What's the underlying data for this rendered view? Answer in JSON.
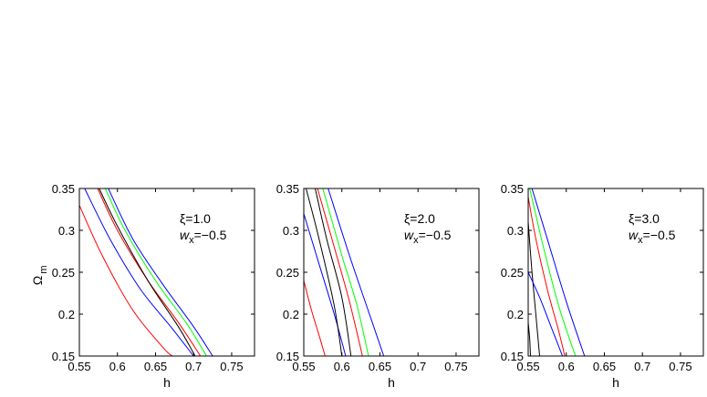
{
  "chart_data": [
    {
      "type": "line",
      "xlabel": "h",
      "ylabel": "Ω",
      "ylabel_sub": "m",
      "xlim": [
        0.55,
        0.78
      ],
      "ylim": [
        0.15,
        0.35
      ],
      "xticks": [
        "0.55",
        "0.6",
        "0.65",
        "0.7",
        "0.75"
      ],
      "yticks": [
        "0.15",
        "0.2",
        "0.25",
        "0.3",
        "0.35"
      ],
      "annotation_line1": "ξ=1.0",
      "annotation_w": "w",
      "annotation_w_sub": "x",
      "annotation_w_value": "=−0.5",
      "series": [
        {
          "color": "#ff0000",
          "points": [
            [
              0.55,
              0.33
            ],
            [
              0.58,
              0.27
            ],
            [
              0.62,
              0.205
            ],
            [
              0.66,
              0.16
            ],
            [
              0.672,
              0.15
            ]
          ]
        },
        {
          "color": "#0000ff",
          "points": [
            [
              0.557,
              0.35
            ],
            [
              0.59,
              0.29
            ],
            [
              0.63,
              0.23
            ],
            [
              0.67,
              0.185
            ],
            [
              0.7,
              0.15
            ]
          ]
        },
        {
          "color": "#ff0000",
          "points": [
            [
              0.574,
              0.35
            ],
            [
              0.6,
              0.3
            ],
            [
              0.64,
              0.24
            ],
            [
              0.68,
              0.19
            ],
            [
              0.709,
              0.15
            ]
          ]
        },
        {
          "color": "#000000",
          "points": [
            [
              0.576,
              0.35
            ],
            [
              0.6,
              0.305
            ],
            [
              0.64,
              0.24
            ],
            [
              0.68,
              0.185
            ],
            [
              0.702,
              0.15
            ]
          ]
        },
        {
          "color": "#00ff00",
          "points": [
            [
              0.584,
              0.35
            ],
            [
              0.61,
              0.3
            ],
            [
              0.65,
              0.24
            ],
            [
              0.69,
              0.19
            ],
            [
              0.717,
              0.15
            ]
          ]
        },
        {
          "color": "#0000ff",
          "points": [
            [
              0.588,
              0.35
            ],
            [
              0.62,
              0.29
            ],
            [
              0.66,
              0.235
            ],
            [
              0.7,
              0.185
            ],
            [
              0.725,
              0.15
            ]
          ]
        }
      ]
    },
    {
      "type": "line",
      "xlabel": "h",
      "xlim": [
        0.55,
        0.78
      ],
      "ylim": [
        0.15,
        0.35
      ],
      "xticks": [
        "0.55",
        "0.6",
        "0.65",
        "0.7",
        "0.75"
      ],
      "yticks": [
        "0.15",
        "0.2",
        "0.25",
        "0.3",
        "0.35"
      ],
      "annotation_line1": "ξ=2.0",
      "annotation_w": "w",
      "annotation_w_sub": "x",
      "annotation_w_value": "=−0.5",
      "series": [
        {
          "color": "#ff0000",
          "points": [
            [
              0.55,
              0.24
            ],
            [
              0.56,
              0.205
            ],
            [
              0.57,
              0.175
            ],
            [
              0.578,
              0.15
            ]
          ]
        },
        {
          "color": "#0000ff",
          "points": [
            [
              0.55,
              0.32
            ],
            [
              0.57,
              0.26
            ],
            [
              0.59,
              0.2
            ],
            [
              0.605,
              0.15
            ]
          ]
        },
        {
          "color": "#000000",
          "points": [
            [
              0.553,
              0.35
            ],
            [
              0.57,
              0.29
            ],
            [
              0.59,
              0.21
            ],
            [
              0.6,
              0.15
            ]
          ]
        },
        {
          "color": "#000000",
          "points": [
            [
              0.565,
              0.35
            ],
            [
              0.58,
              0.29
            ],
            [
              0.6,
              0.22
            ],
            [
              0.612,
              0.15
            ]
          ]
        },
        {
          "color": "#ff0000",
          "points": [
            [
              0.568,
              0.35
            ],
            [
              0.59,
              0.28
            ],
            [
              0.61,
              0.215
            ],
            [
              0.627,
              0.15
            ]
          ]
        },
        {
          "color": "#00ff00",
          "points": [
            [
              0.575,
              0.35
            ],
            [
              0.6,
              0.27
            ],
            [
              0.62,
              0.21
            ],
            [
              0.635,
              0.15
            ]
          ]
        },
        {
          "color": "#0000ff",
          "points": [
            [
              0.582,
              0.35
            ],
            [
              0.61,
              0.27
            ],
            [
              0.64,
              0.19
            ],
            [
              0.655,
              0.15
            ]
          ]
        }
      ]
    },
    {
      "type": "line",
      "xlabel": "h",
      "xlim": [
        0.55,
        0.78
      ],
      "ylim": [
        0.15,
        0.35
      ],
      "xticks": [
        "0.55",
        "0.6",
        "0.65",
        "0.7",
        "0.75"
      ],
      "yticks": [
        "0.15",
        "0.2",
        "0.25",
        "0.3",
        "0.35"
      ],
      "annotation_line1": "ξ=3.0",
      "annotation_w": "w",
      "annotation_w_sub": "x",
      "annotation_w_value": "=−0.5",
      "series": [
        {
          "color": "#000000",
          "points": [
            [
              0.55,
              0.19
            ],
            [
              0.552,
              0.17
            ],
            [
              0.553,
              0.15
            ]
          ]
        },
        {
          "color": "#000000",
          "points": [
            [
              0.55,
              0.31
            ],
            [
              0.555,
              0.25
            ],
            [
              0.56,
              0.2
            ],
            [
              0.565,
              0.15
            ]
          ]
        },
        {
          "color": "#0000ff",
          "points": [
            [
              0.55,
              0.25
            ],
            [
              0.565,
              0.22
            ],
            [
              0.58,
              0.185
            ],
            [
              0.595,
              0.15
            ]
          ]
        },
        {
          "color": "#ff0000",
          "points": [
            [
              0.55,
              0.34
            ],
            [
              0.56,
              0.29
            ],
            [
              0.575,
              0.23
            ],
            [
              0.59,
              0.18
            ],
            [
              0.598,
              0.15
            ]
          ]
        },
        {
          "color": "#00ff00",
          "points": [
            [
              0.552,
              0.35
            ],
            [
              0.57,
              0.28
            ],
            [
              0.59,
              0.21
            ],
            [
              0.612,
              0.15
            ]
          ]
        },
        {
          "color": "#0000ff",
          "points": [
            [
              0.555,
              0.35
            ],
            [
              0.575,
              0.29
            ],
            [
              0.6,
              0.215
            ],
            [
              0.624,
              0.15
            ]
          ]
        }
      ]
    }
  ]
}
